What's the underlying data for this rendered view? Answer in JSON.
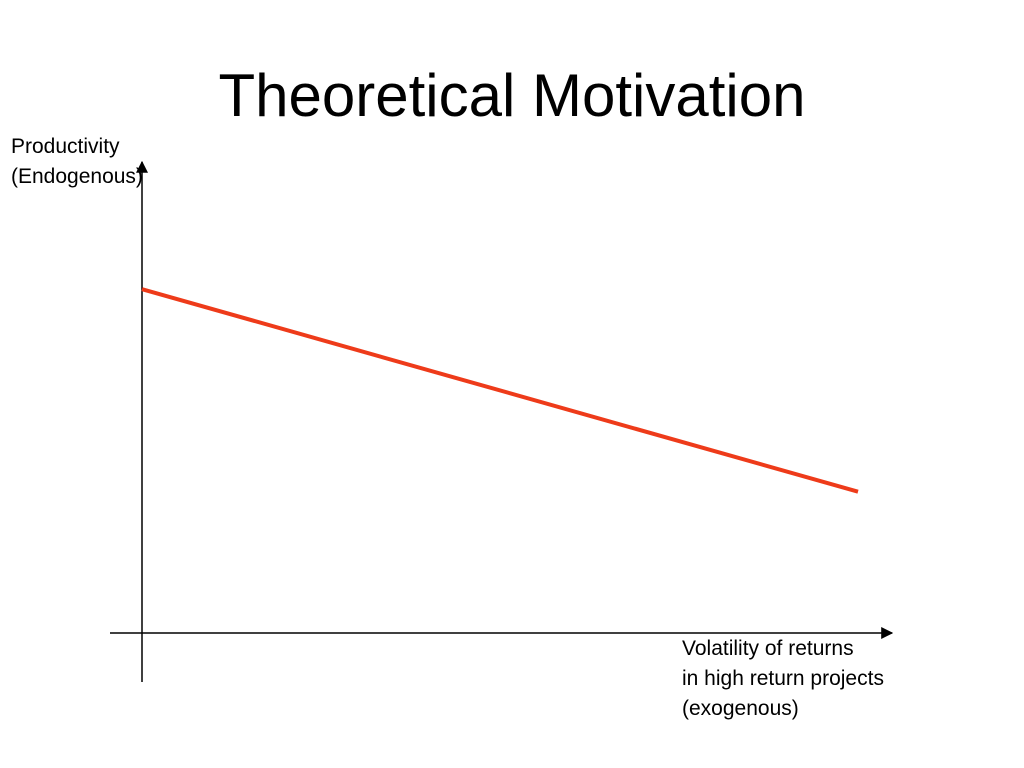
{
  "slide": {
    "title": "Theoretical Motivation"
  },
  "chart_data": {
    "type": "line",
    "title": "Theoretical Motivation",
    "ylabel_lines": [
      "Productivity",
      "(Endogenous)"
    ],
    "xlabel_lines": [
      "Volatility of returns",
      "in high return projects",
      "(exogenous)"
    ],
    "ylabel": "Productivity (Endogenous)",
    "xlabel": "Volatility of returns in high return projects (exogenous)",
    "xlim": [
      0,
      1
    ],
    "ylim": [
      0,
      1
    ],
    "series": [
      {
        "x": [
          0,
          1
        ],
        "y": [
          0.73,
          0.3
        ],
        "color": "#ee3b1a"
      }
    ],
    "grid": false,
    "legend": "none",
    "axis_color": "#000000"
  }
}
